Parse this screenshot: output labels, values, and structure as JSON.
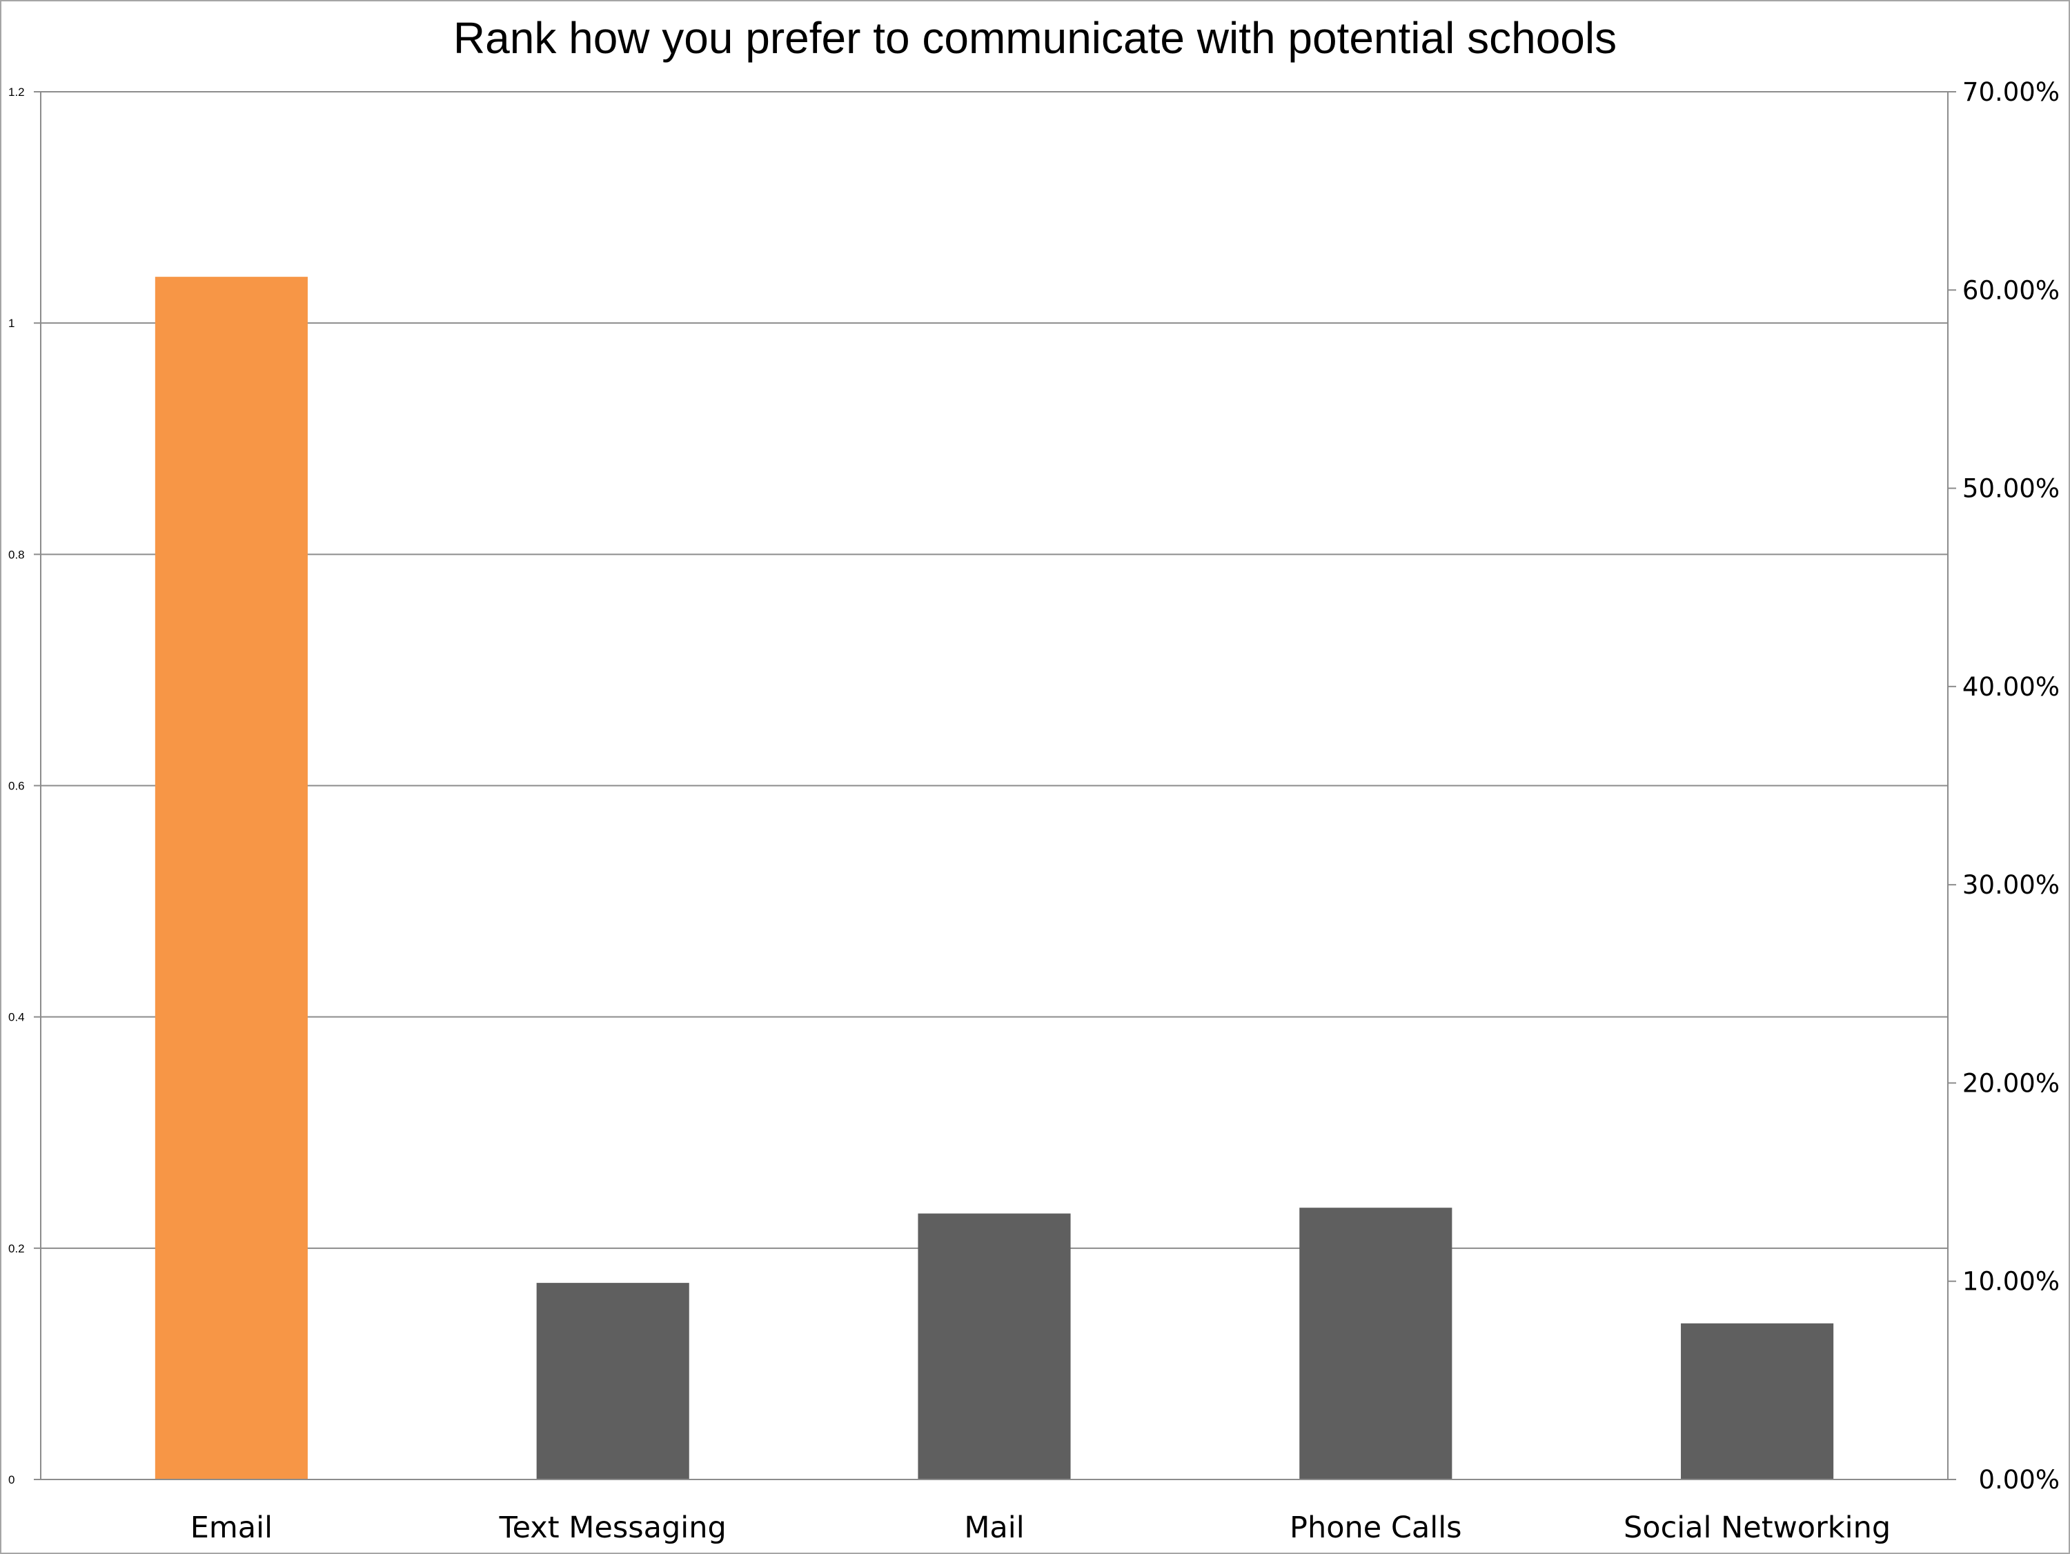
{
  "chart_data": {
    "type": "bar",
    "title": "Rank how you prefer to communicate with potential schools",
    "categories": [
      "Email",
      "Text Messaging",
      "Mail",
      "Phone Calls",
      "Social Networking"
    ],
    "series": [
      {
        "values": [
          1.04,
          0.17,
          0.23,
          0.235,
          0.135
        ]
      }
    ],
    "colors": [
      "#f79646",
      "#5f5f5f",
      "#5f5f5f",
      "#5f5f5f",
      "#5f5f5f"
    ],
    "ylim": [
      0,
      1.2
    ],
    "yticks": [
      "0",
      "0.2",
      "0.4",
      "0.6",
      "0.8",
      "1",
      "1.2"
    ],
    "y2lim": [
      0,
      0.7
    ],
    "y2ticks": [
      "0.00%",
      "10.00%",
      "20.00%",
      "30.00%",
      "40.00%",
      "50.00%",
      "60.00%",
      "70.00%"
    ],
    "grid": true,
    "gridline_color": "#8c8c8c",
    "xlabel": "",
    "ylabel": ""
  }
}
